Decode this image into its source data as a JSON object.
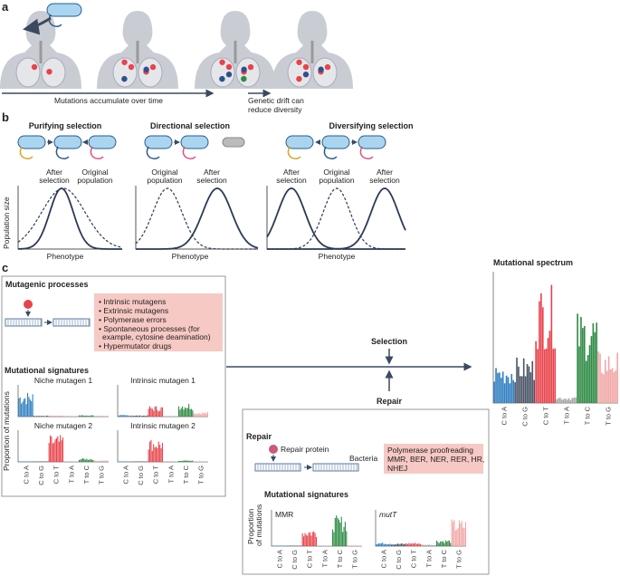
{
  "panel_a": {
    "label": "a",
    "arrow_text": "Mutations accumulate over time",
    "drift_text_1": "Genetic drift can",
    "drift_text_2": "reduce diversity"
  },
  "panel_b": {
    "label": "b",
    "titles": [
      "Purifying selection",
      "Directional selection",
      "Diversifying selection"
    ],
    "purifying_labels": [
      "After",
      "selection",
      "Original",
      "population"
    ],
    "directional_labels": [
      "Original",
      "population",
      "After",
      "selection"
    ],
    "diversifying_labels": [
      "After",
      "selection",
      "Original",
      "population",
      "After",
      "selection"
    ],
    "y_axis": "Population size",
    "x_axis": "Phenotype"
  },
  "panel_c": {
    "label": "c",
    "mutagenic_title": "Mutagenic processes",
    "mutagen_list": [
      "• Intrinsic mutagens",
      "• Extrinsic mutagens",
      "• Polymerase errors",
      "• Spontaneous processes (for",
      "  example, cytosine deamination)",
      "• Hypermutator drugs"
    ],
    "signatures_title": "Mutational signatures",
    "y_axis": "Proportion of mutations",
    "selection": "Selection",
    "repair": "Repair",
    "spectrum_title": "Mutational spectrum",
    "repair_box": {
      "title": "Repair",
      "protein": "Repair protein",
      "bacteria": "Bacteria",
      "mechanisms": [
        "Polymerase proofreading",
        "MMR, BER, NER, RER, HR,",
        "NHEJ"
      ],
      "signatures_title": "Mutational signatures",
      "y_axis_1": "Proportion",
      "y_axis_2": "of mutations"
    }
  },
  "colors": {
    "C to A": "#2f7fc1",
    "C to G": "#4b5568",
    "C to T": "#e8434b",
    "T to A": "#a9a9a9",
    "T to C": "#2e8b45",
    "T to G": "#f1a7a7",
    "pink_box": "#f7c9c4",
    "bacterium": "#a9d5f0"
  },
  "chart_data": [
    {
      "type": "bar",
      "title": "Niche mutagen 1",
      "categories": [
        "C to A",
        "C to G",
        "C to T",
        "T to A",
        "T to C",
        "T to G"
      ],
      "values": [
        0.8,
        0.03,
        0.0,
        0.0,
        0.05,
        0.03
      ]
    },
    {
      "type": "bar",
      "title": "Intrinsic mutagen 1",
      "categories": [
        "C to A",
        "C to G",
        "C to T",
        "T to A",
        "T to C",
        "T to G"
      ],
      "values": [
        0.05,
        0.04,
        0.35,
        0.0,
        0.45,
        0.15
      ]
    },
    {
      "type": "bar",
      "title": "Niche mutagen 2",
      "categories": [
        "C to A",
        "C to G",
        "C to T",
        "T to A",
        "T to C",
        "T to G"
      ],
      "values": [
        0.0,
        0.0,
        0.85,
        0.0,
        0.12,
        0.05
      ]
    },
    {
      "type": "bar",
      "title": "Intrinsic mutagen 2",
      "categories": [
        "C to A",
        "C to G",
        "C to T",
        "T to A",
        "T to C",
        "T to G"
      ],
      "values": [
        0.0,
        0.0,
        0.75,
        0.0,
        0.05,
        0.0
      ]
    },
    {
      "type": "bar",
      "title": "MMR",
      "categories": [
        "C to A",
        "C to G",
        "C to T",
        "T to A",
        "T to C",
        "T to G"
      ],
      "values": [
        0.01,
        0.01,
        0.5,
        0.0,
        0.85,
        0.02
      ]
    },
    {
      "type": "bar",
      "title": "mutT",
      "categories": [
        "C to A",
        "C to G",
        "C to T",
        "T to A",
        "T to C",
        "T to G"
      ],
      "values": [
        0.1,
        0.08,
        0.1,
        0.05,
        0.18,
        0.75
      ]
    },
    {
      "type": "bar",
      "title": "",
      "categories": [
        "C to A",
        "C to G",
        "C to T",
        "T to A",
        "T to C",
        "T to G"
      ],
      "values": [
        0.3,
        0.35,
        0.9,
        0.05,
        0.7,
        0.4
      ]
    }
  ]
}
